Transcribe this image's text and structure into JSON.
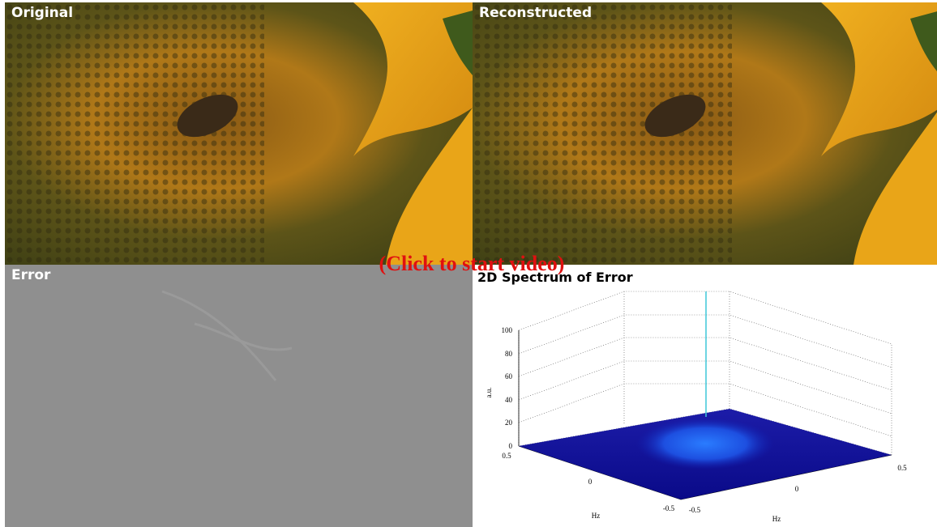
{
  "panels": [
    {
      "title": "Original"
    },
    {
      "title": "Reconstructed"
    },
    {
      "title": "Error"
    },
    {
      "title": "2D Spectrum of Error"
    }
  ],
  "overlay": "(Click to start video)",
  "spectrum": {
    "z_label": "a.u.",
    "z_ticks": [
      "0",
      "20",
      "40",
      "60",
      "80",
      "100"
    ],
    "x_ticks": [
      "0.5",
      "0",
      "-0.5"
    ],
    "x_label": "Hz",
    "y_ticks": [
      "-0.5",
      "0",
      "0.5"
    ],
    "y_label": "Hz"
  }
}
